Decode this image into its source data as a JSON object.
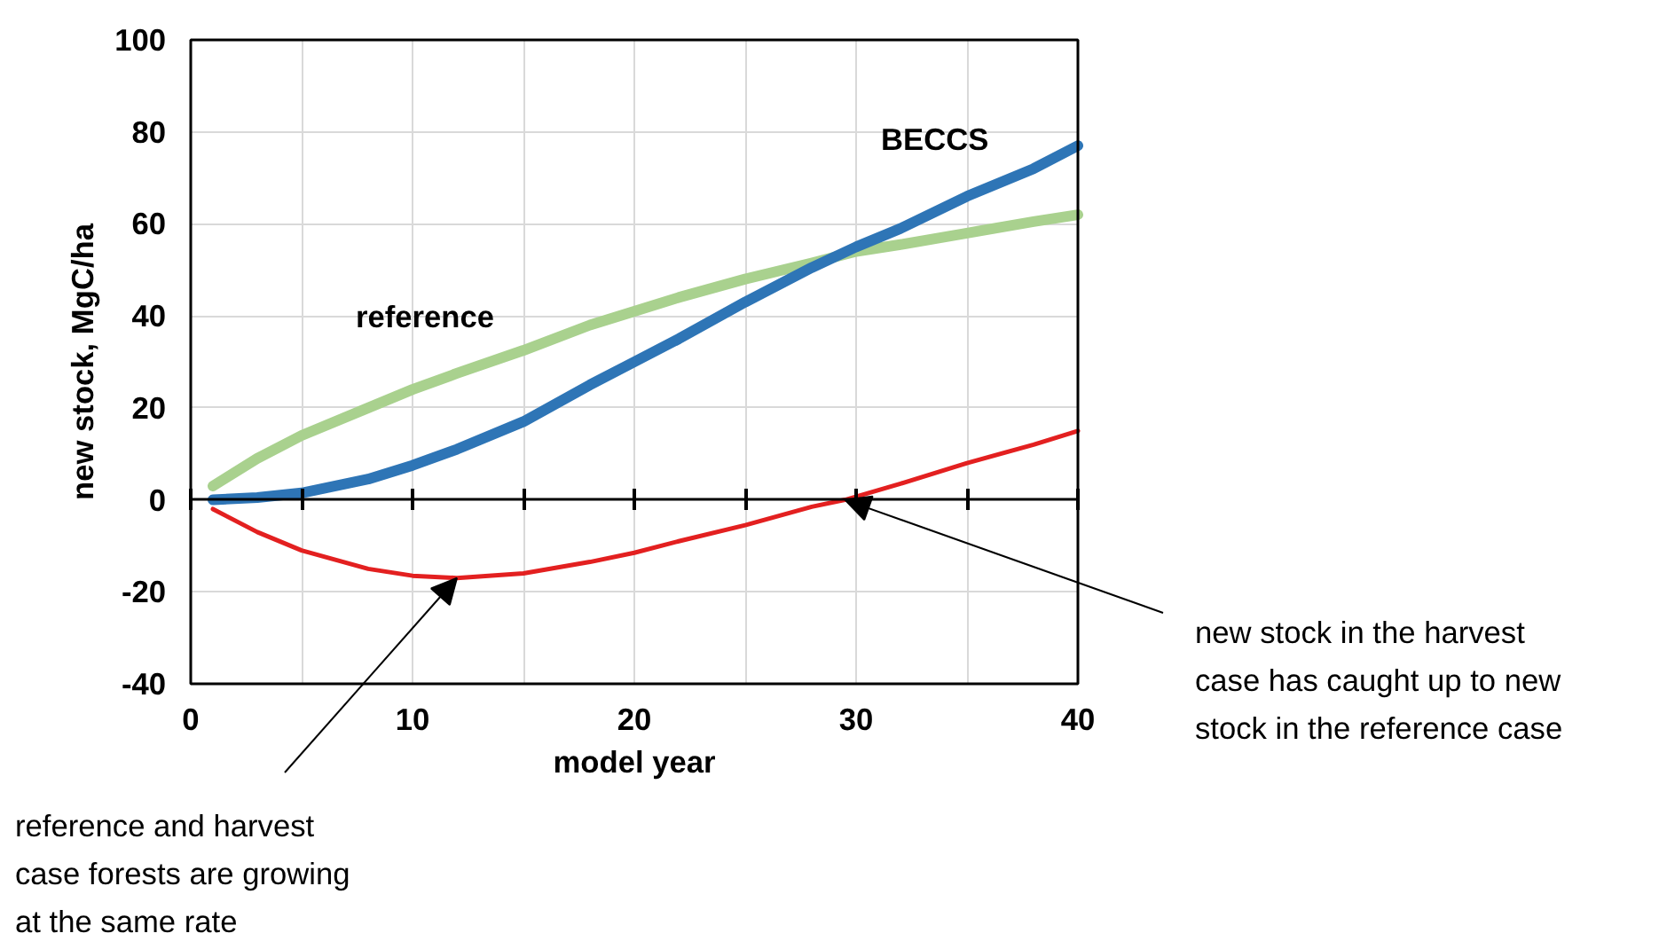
{
  "chart_data": {
    "type": "line",
    "xlabel": "model year",
    "ylabel": "new stock, MgC/ha",
    "xlim": [
      0,
      40
    ],
    "ylim": [
      -40,
      100
    ],
    "xticks": [
      0,
      {
        "value": 5,
        "label": null
      },
      10,
      {
        "value": 15,
        "label": null
      },
      20,
      {
        "value": 25,
        "label": null
      },
      30,
      {
        "value": 35,
        "label": null
      },
      40
    ],
    "yticks": [
      -40,
      -20,
      0,
      20,
      40,
      60,
      80,
      100
    ],
    "grid": true,
    "marker": "none",
    "line_style": "solid",
    "series": [
      {
        "name": "reference",
        "color": "#a9d18e",
        "x": [
          1,
          3,
          5,
          8,
          10,
          12,
          15,
          18,
          20,
          22,
          25,
          28,
          30,
          32,
          35,
          38,
          40
        ],
        "values": [
          3,
          9,
          14,
          20,
          24,
          27.5,
          32.5,
          38,
          41,
          44,
          48,
          51.5,
          54,
          55.5,
          58,
          60.5,
          62
        ]
      },
      {
        "name": "BECCS",
        "color": "#2e75b6",
        "x": [
          1,
          3,
          5,
          8,
          10,
          12,
          15,
          18,
          20,
          22,
          25,
          28,
          30,
          32,
          35,
          38,
          40
        ],
        "values": [
          0,
          0.5,
          1.5,
          4.5,
          7.5,
          11,
          17,
          25,
          30,
          35,
          43,
          50.5,
          55,
          59,
          66,
          72,
          77
        ]
      },
      {
        "color": "#e32020",
        "x": [
          1,
          3,
          5,
          8,
          10,
          12,
          15,
          18,
          20,
          22,
          25,
          28,
          29.5,
          32,
          35,
          38,
          40
        ],
        "values": [
          -2,
          -7,
          -11,
          -15,
          -16.5,
          -17,
          -16,
          -13.5,
          -11.5,
          -9,
          -5.5,
          -1.5,
          0,
          3.5,
          8,
          12,
          15
        ]
      }
    ],
    "annotations": [
      {
        "text": "reference and harvest case forests are growing at the same rate",
        "x": 12,
        "y": -17
      },
      {
        "text": "new stock in the harvest case has caught up to new stock in the reference case",
        "x": 29.5,
        "y": 0
      }
    ]
  }
}
